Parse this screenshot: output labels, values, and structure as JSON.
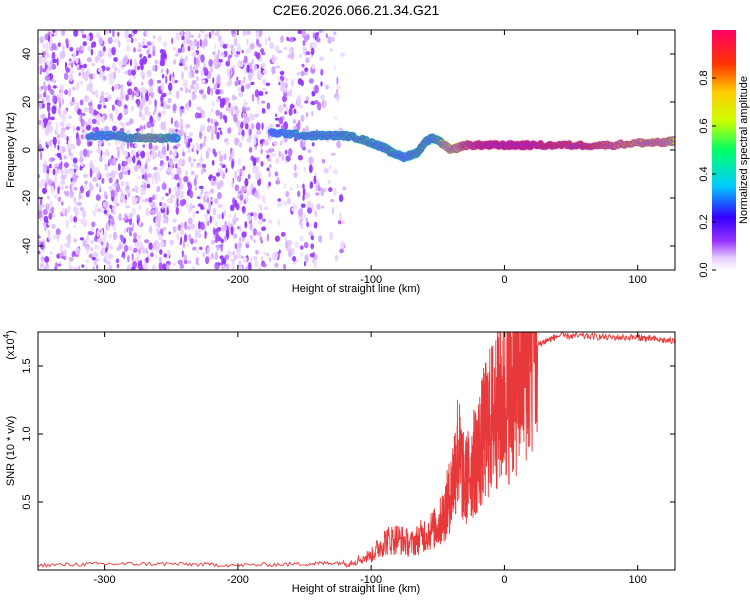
{
  "figure": {
    "title": "C2E6.2026.066.21.34.G21"
  },
  "chart_data": [
    {
      "type": "heatmap",
      "title": "C2E6.2026.066.21.34.G21",
      "xlabel": "Height of straight line (km)",
      "ylabel": "Frequency (Hz)",
      "xlim": [
        -350,
        128
      ],
      "ylim": [
        -50,
        50
      ],
      "xticks": [
        "-300",
        "-200",
        "-100",
        "0",
        "100"
      ],
      "yticks": [
        "-40",
        "-20",
        "0",
        "20",
        "40"
      ],
      "colorbar": {
        "label": "Normalized spectral amplitude",
        "range": [
          0,
          1
        ],
        "ticks": [
          "0.0",
          "0.2",
          "0.4",
          "0.6",
          "0.8"
        ],
        "colormap": [
          "#ffffff",
          "#d9b3ff",
          "#7700ff",
          "#0000ff",
          "#00ccff",
          "#00ff66",
          "#ccff00",
          "#ffcc00",
          "#ff3300",
          "#ff0066"
        ]
      },
      "ridge": {
        "description_free": true,
        "x": [
          -312,
          -300,
          -290,
          -280,
          -270,
          -260,
          -250,
          -245,
          -175,
          -165,
          -150,
          -140,
          -130,
          -120,
          -110,
          -100,
          -95,
          -90,
          -85,
          -80,
          -75,
          -70,
          -65,
          -60,
          -55,
          -50,
          -45,
          -40,
          -35,
          -30,
          -20,
          -10,
          0,
          10,
          20,
          40,
          60,
          80,
          100,
          110,
          120,
          128
        ],
        "frequency": [
          6,
          6,
          6,
          5,
          5,
          5,
          5,
          5,
          7,
          7,
          6,
          6,
          6,
          6,
          5,
          3,
          2,
          1,
          -1,
          -2,
          -3,
          -2,
          -1,
          3,
          5,
          4,
          2,
          0,
          1,
          2,
          2,
          2,
          2,
          2,
          2,
          2,
          2,
          2,
          3,
          3,
          3,
          4
        ],
        "amplitude": [
          0.45,
          0.4,
          0.45,
          0.5,
          0.55,
          0.55,
          0.5,
          0.4,
          0.35,
          0.4,
          0.45,
          0.45,
          0.45,
          0.45,
          0.5,
          0.5,
          0.45,
          0.45,
          0.5,
          0.45,
          0.4,
          0.45,
          0.5,
          0.5,
          0.45,
          0.5,
          0.6,
          0.65,
          0.7,
          0.8,
          0.85,
          0.9,
          0.9,
          0.9,
          0.9,
          0.85,
          0.85,
          0.8,
          0.75,
          0.75,
          0.75,
          0.65
        ]
      }
    },
    {
      "type": "line",
      "xlabel": "Height of straight line (km)",
      "ylabel": "SNR (10 * v/v)",
      "yscale_label": "(x10",
      "yscale_exp": "4",
      "xlim": [
        -350,
        128
      ],
      "ylim": [
        0,
        1.75
      ],
      "xticks": [
        "-300",
        "-200",
        "-100",
        "0",
        "100"
      ],
      "yticks": [
        "0.5",
        "1.0",
        "1.5"
      ],
      "color": "#e8393a",
      "series": [
        {
          "x": [
            -350,
            -300,
            -250,
            -200,
            -150,
            -120,
            -100,
            -90,
            -80,
            -70,
            -60,
            -50,
            -45,
            -40,
            -35,
            -30,
            -25,
            -20,
            -15,
            -10,
            -5,
            0,
            5,
            10,
            15,
            20,
            30,
            40,
            60,
            80,
            100,
            110,
            128
          ],
          "values": [
            0.02,
            0.03,
            0.03,
            0.02,
            0.03,
            0.04,
            0.1,
            0.2,
            0.22,
            0.18,
            0.25,
            0.3,
            0.4,
            0.55,
            0.85,
            0.6,
            0.7,
            0.8,
            0.95,
            1.05,
            1.15,
            1.2,
            1.25,
            1.35,
            1.5,
            1.62,
            1.68,
            1.72,
            1.72,
            1.71,
            1.71,
            1.7,
            1.68
          ]
        }
      ]
    }
  ]
}
